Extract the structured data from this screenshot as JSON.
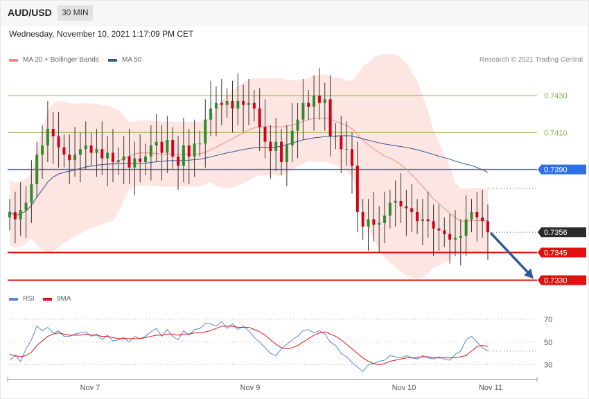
{
  "header": {
    "symbol": "AUD/USD",
    "timeframe": "30 MIN"
  },
  "datetime": "Wednesday, November 10, 2021 1:17:09 PM CET",
  "legend_main": [
    {
      "label": "MA 20 + Bollinger Bands",
      "color": "#f08c84"
    },
    {
      "label": "MA 50",
      "color": "#2e5a9c"
    }
  ],
  "credit": "Research © 2021 Trading Central",
  "legend_rsi": [
    {
      "label": "RSI",
      "color": "#5b82e0"
    },
    {
      "label": "9MA",
      "color": "#e01010"
    }
  ],
  "chart_data": [
    {
      "type": "candlestick",
      "title": "AUD/USD",
      "x": [
        "Nov 7",
        "Nov 9",
        "Nov 10",
        "Nov 11"
      ],
      "ylim": [
        0.7325,
        0.7445
      ],
      "current_price": {
        "value": 0.7356,
        "label": "0.7356",
        "color": "#2b2b2b"
      },
      "price_levels": [
        {
          "value": 0.743,
          "label": "0.7430",
          "color": "#8ab04a",
          "kind": "resistance"
        },
        {
          "value": 0.741,
          "label": "0.7410",
          "color": "#8ab04a",
          "kind": "resistance"
        },
        {
          "value": 0.739,
          "label": "0.7390",
          "color": "#2f6fe6",
          "kind": "pivot"
        },
        {
          "value": 0.7345,
          "label": "0.7345",
          "color": "#e01010",
          "kind": "support"
        },
        {
          "value": 0.733,
          "label": "0.7330",
          "color": "#e01010",
          "kind": "support"
        }
      ],
      "trend_arrow": {
        "from": 0.7356,
        "to": 0.733,
        "color": "#2e5a9c"
      },
      "close_series": [
        0.7367,
        0.7363,
        0.7368,
        0.7372,
        0.7382,
        0.7398,
        0.7403,
        0.7412,
        0.7408,
        0.7402,
        0.7398,
        0.7395,
        0.7398,
        0.7401,
        0.7403,
        0.7399,
        0.7401,
        0.7396,
        0.7399,
        0.7394,
        0.7395,
        0.7397,
        0.7391,
        0.7396,
        0.7394,
        0.7397,
        0.7403,
        0.7405,
        0.7399,
        0.7406,
        0.7397,
        0.7392,
        0.7403,
        0.7397,
        0.7404,
        0.7404,
        0.7417,
        0.7423,
        0.7426,
        0.7425,
        0.7427,
        0.7423,
        0.7427,
        0.7425,
        0.7426,
        0.7423,
        0.7413,
        0.7405,
        0.74,
        0.7405,
        0.7394,
        0.7403,
        0.7411,
        0.7417,
        0.7426,
        0.7424,
        0.743,
        0.7426,
        0.7428,
        0.7408,
        0.7408,
        0.7401,
        0.7401,
        0.7392,
        0.7367,
        0.7359,
        0.7363,
        0.736,
        0.7361,
        0.7365,
        0.7372,
        0.7373,
        0.737,
        0.7369,
        0.7367,
        0.7362,
        0.7363,
        0.7362,
        0.7358,
        0.7357,
        0.7355,
        0.7352,
        0.7353,
        0.7354,
        0.7363,
        0.7367,
        0.7364,
        0.7362,
        0.7356
      ]
    },
    {
      "type": "line",
      "title": "RSI",
      "ylim": [
        25,
        75
      ],
      "y_ticks": [
        70,
        50,
        30
      ],
      "series": [
        {
          "name": "RSI",
          "color": "#5b82e0",
          "values": [
            34,
            38,
            33,
            44,
            52,
            64,
            60,
            63,
            58,
            60,
            55,
            55,
            57,
            58,
            59,
            55,
            57,
            52,
            56,
            51,
            52,
            54,
            50,
            55,
            53,
            55,
            59,
            62,
            55,
            61,
            55,
            52,
            60,
            56,
            61,
            62,
            66,
            66,
            64,
            68,
            62,
            66,
            61,
            64,
            60,
            54,
            50,
            45,
            40,
            38,
            44,
            48,
            52,
            55,
            60,
            61,
            58,
            60,
            57,
            50,
            47,
            40,
            37,
            32,
            28,
            24,
            30,
            31,
            33,
            34,
            38,
            37,
            36,
            38,
            36,
            35,
            38,
            36,
            35,
            37,
            35,
            34,
            39,
            42,
            52,
            55,
            50,
            45,
            42
          ]
        },
        {
          "name": "9MA",
          "color": "#e01010",
          "values": [
            39,
            38,
            37,
            38,
            41,
            47,
            51,
            55,
            57,
            58,
            57,
            56,
            56,
            56,
            57,
            56,
            56,
            55,
            55,
            54,
            53,
            53,
            53,
            53,
            53,
            54,
            55,
            56,
            56,
            57,
            57,
            56,
            57,
            57,
            58,
            58,
            59,
            60,
            62,
            64,
            64,
            64,
            63,
            63,
            63,
            61,
            59,
            56,
            52,
            48,
            45,
            44,
            45,
            47,
            50,
            53,
            56,
            58,
            59,
            57,
            55,
            52,
            48,
            44,
            40,
            36,
            33,
            31,
            30,
            31,
            33,
            34,
            35,
            36,
            36,
            36,
            37,
            37,
            36,
            36,
            36,
            36,
            36,
            37,
            38,
            42,
            46,
            47,
            46
          ]
        }
      ]
    }
  ]
}
